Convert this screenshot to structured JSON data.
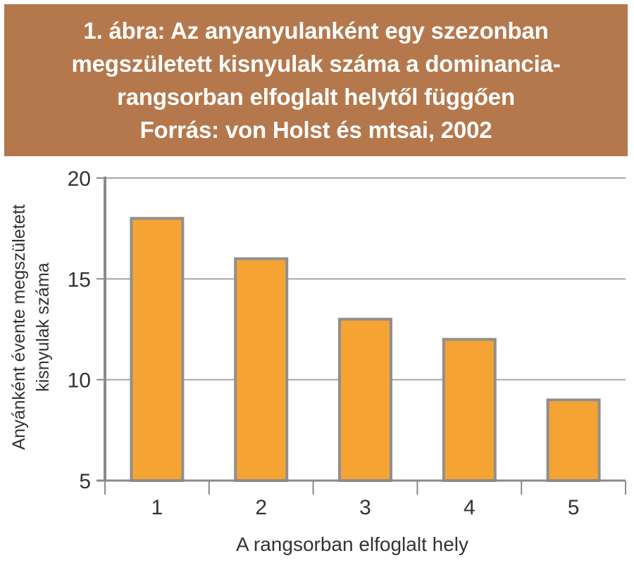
{
  "title": {
    "lines": [
      "1. ábra: Az anyanyulanként egy szezonban",
      "megszületett kisnyulak száma a dominancia-",
      "rangsorban elfoglalt helytől függően",
      "Forrás: von Holst és mtsai, 2002"
    ]
  },
  "colors": {
    "title_background": "#b4784c",
    "title_text": "#ffffff",
    "bar_fill": "#f5a433",
    "bar_stroke": "#8f8f8f",
    "axis": "#8a8a8a",
    "grid": "#a6a6a6",
    "text": "#333333"
  },
  "chart_data": {
    "type": "bar",
    "categories": [
      "1",
      "2",
      "3",
      "4",
      "5"
    ],
    "values": [
      18,
      16,
      13,
      12,
      9
    ],
    "xlabel": "A rangsorban elfoglalt hely",
    "ylabel": [
      "Anyánként évente megszületett",
      "kisnyulak száma"
    ],
    "ylim": [
      5,
      20
    ],
    "yticks": [
      "5",
      "10",
      "15",
      "20"
    ],
    "grid": true,
    "legend": "none"
  }
}
